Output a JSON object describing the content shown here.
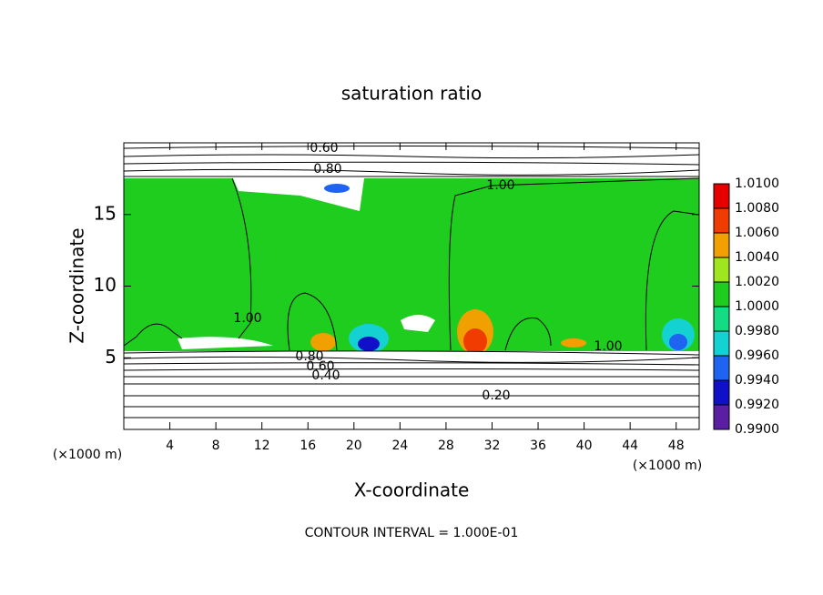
{
  "chart_data": {
    "type": "contour",
    "title": "saturation ratio",
    "x_label": "X-coordinate",
    "y_label": "Z-coordinate",
    "x_unit": "(×1000 m)",
    "y_unit": "(×1000 m)",
    "footer": "CONTOUR INTERVAL = 1.000E-01",
    "xlim": [
      0,
      50
    ],
    "xticks": [
      4,
      8,
      12,
      16,
      20,
      24,
      28,
      32,
      36,
      40,
      44,
      48
    ],
    "ylim": [
      0,
      20
    ],
    "yticks": [
      5,
      10,
      15
    ],
    "contour_labels": [
      "0.60",
      "0.80",
      "1.00",
      "1.00",
      "1.00",
      "0.80",
      "0.60",
      "0.40",
      "0.20"
    ],
    "colorbar": {
      "ticks": [
        {
          "value": 0.99,
          "label": "0.9900"
        },
        {
          "value": 0.992,
          "label": "0.9920"
        },
        {
          "value": 0.994,
          "label": "0.9940"
        },
        {
          "value": 0.996,
          "label": "0.9960"
        },
        {
          "value": 0.998,
          "label": "0.9980"
        },
        {
          "value": 1.0,
          "label": "1.0000"
        },
        {
          "value": 1.002,
          "label": "1.0020"
        },
        {
          "value": 1.004,
          "label": "1.0040"
        },
        {
          "value": 1.006,
          "label": "1.0060"
        },
        {
          "value": 1.008,
          "label": "1.0080"
        },
        {
          "value": 1.01,
          "label": "1.0100"
        }
      ],
      "colors": [
        "#5a1fa0",
        "#1010c8",
        "#1e64f0",
        "#14d2d2",
        "#14dc82",
        "#1ecd1e",
        "#a0e61e",
        "#f0a000",
        "#f03c00",
        "#e60000"
      ]
    }
  }
}
